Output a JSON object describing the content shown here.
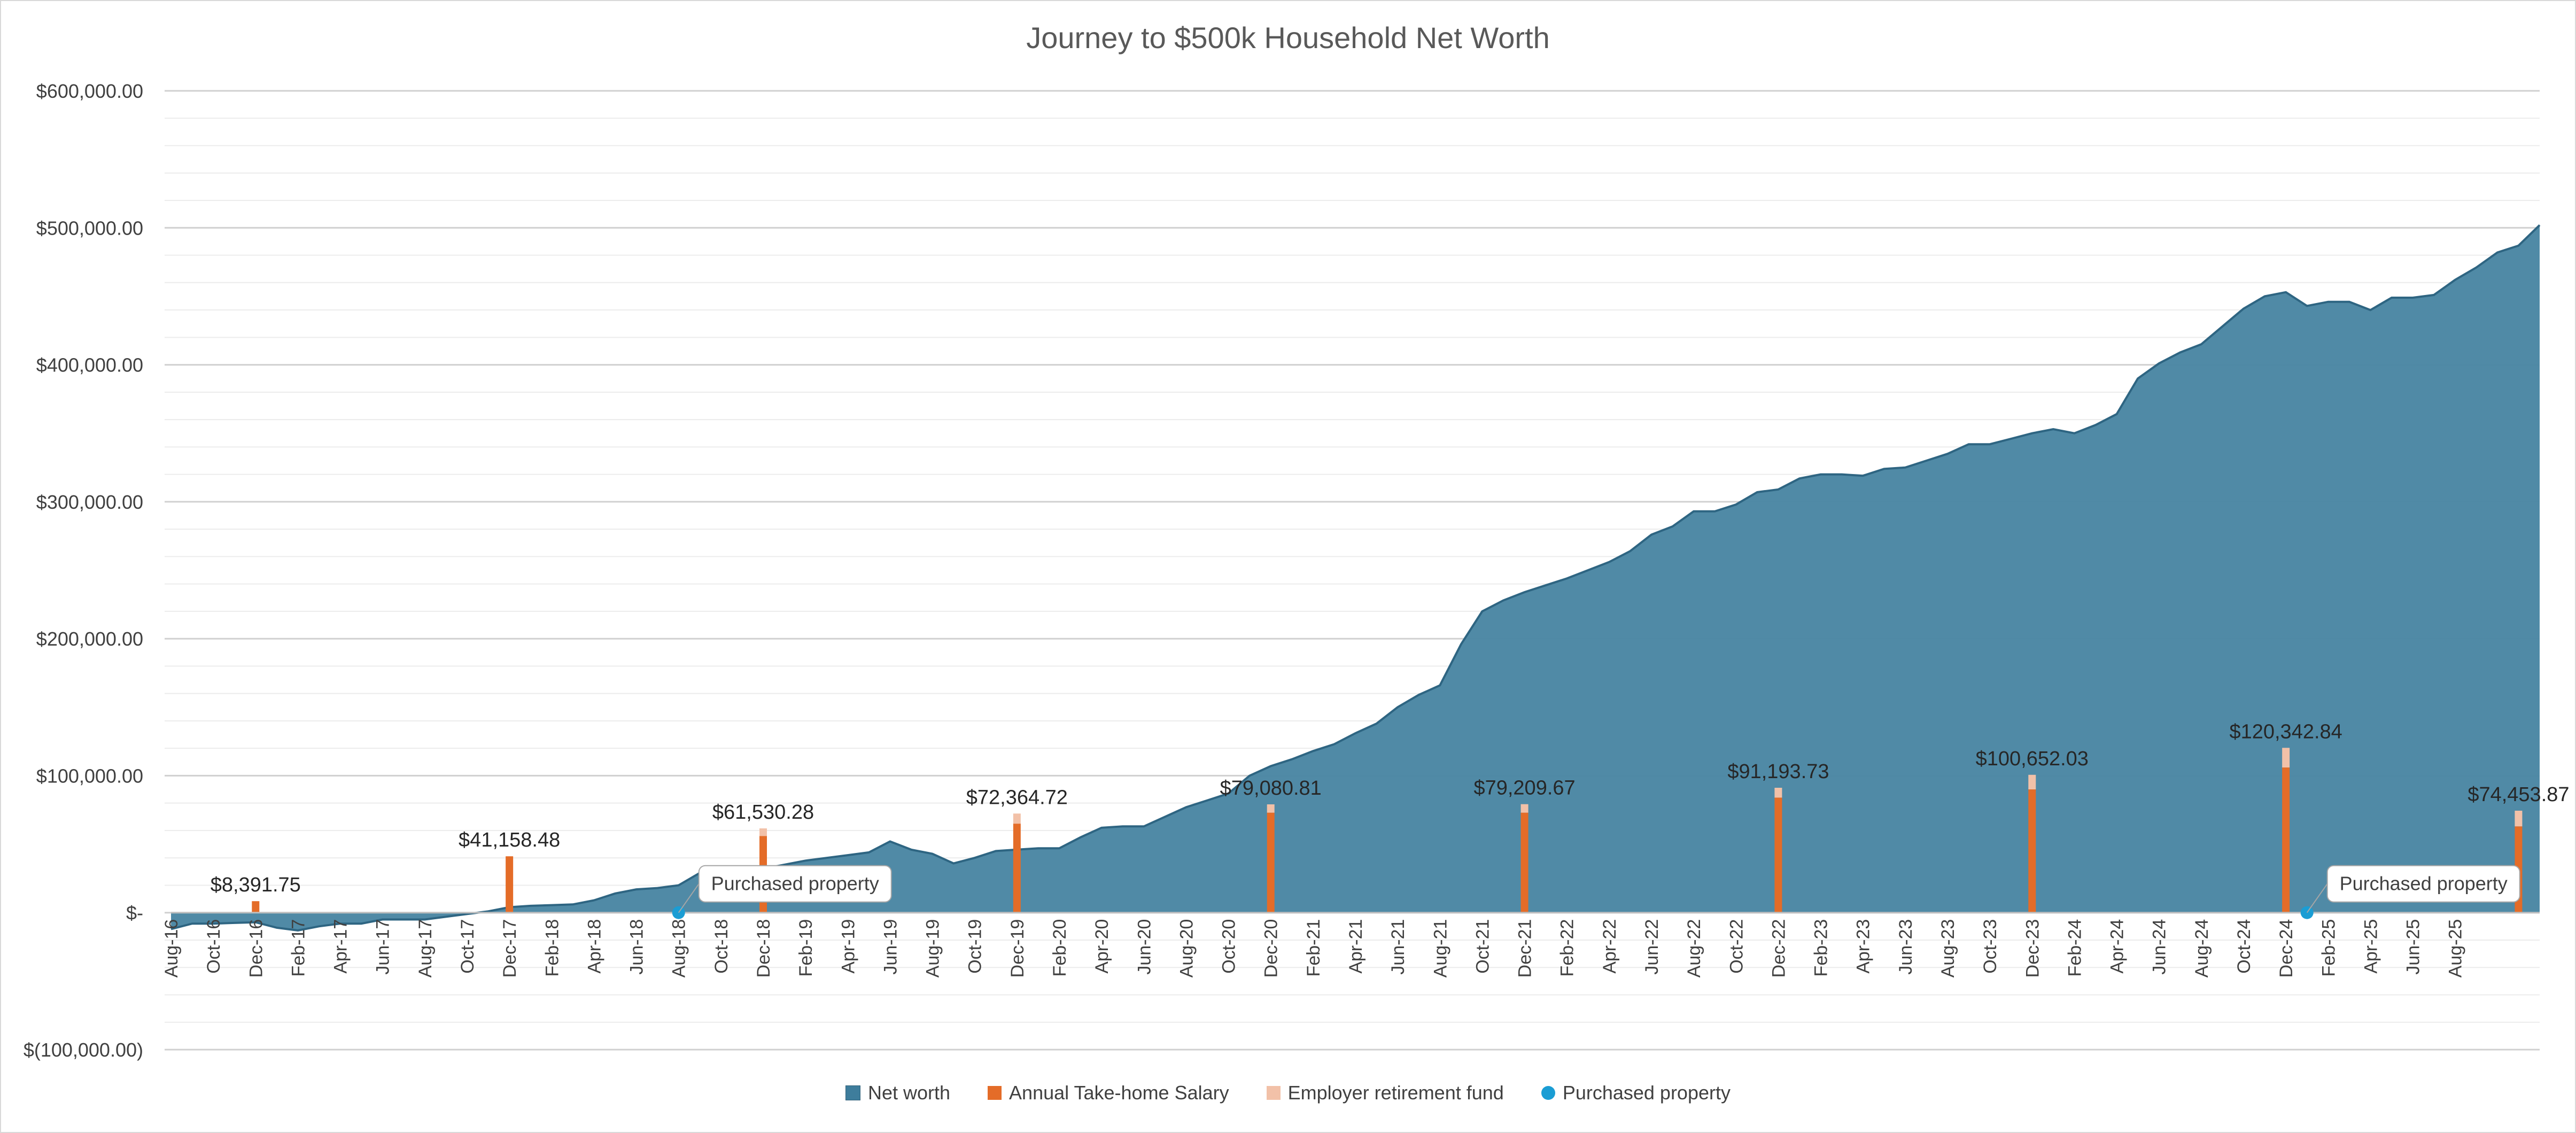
{
  "chart_data": {
    "type": "area",
    "title": "Journey to $500k Household Net Worth",
    "xlabel": "",
    "ylabel": "",
    "ylim": [
      -100000,
      600000
    ],
    "y_ticks": [
      "$600,000.00",
      "$500,000.00",
      "$400,000.00",
      "$300,000.00",
      "$200,000.00",
      "$100,000.00",
      "$-",
      "$(100,000.00)"
    ],
    "y_tick_values": [
      600000,
      500000,
      400000,
      300000,
      200000,
      100000,
      0,
      -100000
    ],
    "grid": true,
    "legend_position": "bottom",
    "x_labels": [
      "Aug-16",
      "Oct-16",
      "Dec-16",
      "Feb-17",
      "Apr-17",
      "Jun-17",
      "Aug-17",
      "Oct-17",
      "Dec-17",
      "Feb-18",
      "Apr-18",
      "Jun-18",
      "Aug-18",
      "Oct-18",
      "Dec-18",
      "Feb-19",
      "Apr-19",
      "Jun-19",
      "Aug-19",
      "Oct-19",
      "Dec-19",
      "Feb-20",
      "Apr-20",
      "Jun-20",
      "Aug-20",
      "Oct-20",
      "Dec-20",
      "Feb-21",
      "Apr-21",
      "Jun-21",
      "Aug-21",
      "Oct-21",
      "Dec-21",
      "Feb-22",
      "Apr-22",
      "Jun-22",
      "Aug-22",
      "Oct-22",
      "Dec-22",
      "Feb-23",
      "Apr-23",
      "Jun-23",
      "Aug-23",
      "Oct-23",
      "Dec-23",
      "Feb-24",
      "Apr-24",
      "Jun-24",
      "Aug-24",
      "Oct-24",
      "Dec-24",
      "Feb-25",
      "Apr-25",
      "Jun-25",
      "Aug-25"
    ],
    "series": [
      {
        "name": "Net worth",
        "type": "area",
        "color": "#3e7d9c",
        "values": [
          -12000,
          -8000,
          -8000,
          -7500,
          -7000,
          -11000,
          -13000,
          -10000,
          -8000,
          -8000,
          -5000,
          -5000,
          -5000,
          -3000,
          -1000,
          1000,
          4000,
          5000,
          5500,
          6000,
          9000,
          14000,
          17000,
          18000,
          20000,
          29000,
          32000,
          33000,
          32000,
          35000,
          38000,
          40000,
          42000,
          44000,
          52000,
          46000,
          43000,
          36000,
          40000,
          45000,
          46000,
          47000,
          47000,
          55000,
          62000,
          63000,
          63000,
          70000,
          77000,
          82000,
          87000,
          100000,
          107000,
          112000,
          118000,
          123000,
          131000,
          138000,
          150000,
          159000,
          166000,
          196000,
          220000,
          228000,
          234000,
          239000,
          244000,
          250000,
          256000,
          264000,
          276000,
          282000,
          293000,
          293000,
          298000,
          307000,
          309000,
          317000,
          320000,
          320000,
          319000,
          324000,
          325000,
          330000,
          335000,
          342000,
          342000,
          346000,
          350000,
          353000,
          350000,
          356000,
          364000,
          390000,
          401000,
          409000,
          415000,
          428000,
          441000,
          450000,
          453000,
          443000,
          446000,
          446000,
          440000,
          449000,
          449000,
          451000,
          462000,
          471000,
          482000,
          487000,
          502000
        ]
      },
      {
        "name": "Annual Take-home Salary",
        "type": "bar",
        "color": "#e46c28",
        "points": [
          {
            "index": 4,
            "value": 8391.75,
            "label": "$8,391.75"
          },
          {
            "index": 16,
            "value": 41158.48,
            "label": "$41,158.48"
          },
          {
            "index": 28,
            "value": 56000,
            "label": "$61,530.28"
          },
          {
            "index": 40,
            "value": 65000,
            "label": "$72,364.72"
          },
          {
            "index": 52,
            "value": 73000,
            "label": "$79,080.81"
          },
          {
            "index": 64,
            "value": 73000,
            "label": "$79,209.67"
          },
          {
            "index": 76,
            "value": 84000,
            "label": "$91,193.73"
          },
          {
            "index": 88,
            "value": 90000,
            "label": "$100,652.03"
          },
          {
            "index": 100,
            "value": 106000,
            "label": "$120,342.84"
          },
          {
            "index": 111,
            "value": 63000,
            "label": "$74,453.87"
          }
        ]
      },
      {
        "name": "Employer retirement fund",
        "type": "bar",
        "color": "#f2c1a8",
        "points": [
          {
            "index": 28,
            "value": 5530
          },
          {
            "index": 40,
            "value": 7360
          },
          {
            "index": 52,
            "value": 6080
          },
          {
            "index": 64,
            "value": 6210
          },
          {
            "index": 76,
            "value": 7190
          },
          {
            "index": 88,
            "value": 10650
          },
          {
            "index": 100,
            "value": 14340
          },
          {
            "index": 111,
            "value": 11450
          }
        ]
      },
      {
        "name": "Purchased property",
        "type": "scatter",
        "color": "#1a9dd4",
        "points": [
          {
            "index": 24,
            "value": 0,
            "label": "Purchased property"
          },
          {
            "index": 101,
            "value": 0,
            "label": "Purchased property"
          }
        ]
      }
    ]
  }
}
